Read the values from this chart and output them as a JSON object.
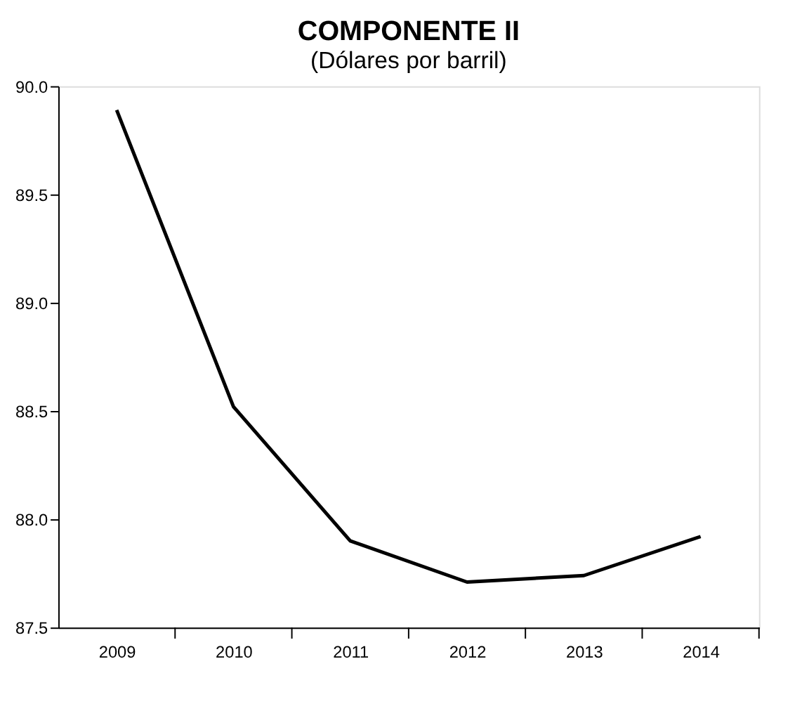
{
  "chart_data": {
    "type": "line",
    "title": "COMPONENTE II",
    "subtitle": "(Dólares por barril)",
    "categories": [
      "2009",
      "2010",
      "2011",
      "2012",
      "2013",
      "2014"
    ],
    "series": [
      {
        "color": "#000000",
        "values": [
          89.89,
          88.52,
          87.9,
          87.71,
          87.74,
          87.92
        ]
      }
    ],
    "ylim": [
      87.5,
      90.0
    ],
    "yticks": [
      {
        "value": 87.5,
        "label": "87.5"
      },
      {
        "value": 88.0,
        "label": "88.0"
      },
      {
        "value": 88.5,
        "label": "88.5"
      },
      {
        "value": 89.0,
        "label": "89.0"
      },
      {
        "value": 89.5,
        "label": "89.5"
      },
      {
        "value": 90.0,
        "label": "90.0"
      }
    ],
    "grid": false,
    "legend": false,
    "marker": "none",
    "line_style": "solid"
  }
}
